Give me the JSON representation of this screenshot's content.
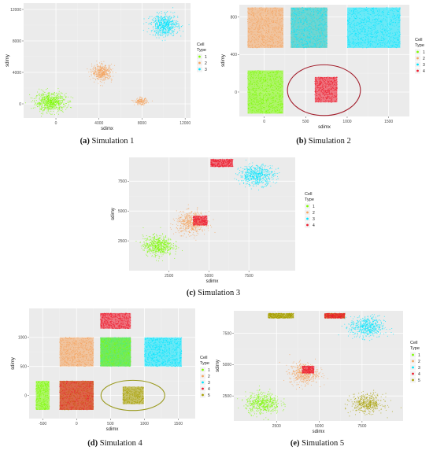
{
  "colors": {
    "1": "#7cfc00",
    "2": "#f4a460",
    "3": "#00e5ff",
    "4": "#ee1c2e",
    "5": "#a8a000",
    "ellipse": "#a31f2d",
    "ellipse_olive": "#9a9a1e"
  },
  "legend_title_line1": "Cell",
  "legend_title_line2": "Type",
  "chart_data": [
    {
      "type": "scatter",
      "caption_label": "(a)",
      "caption_text": "Simulation 1",
      "xlabel": "sdimx",
      "ylabel": "sdimy",
      "xlim": [
        -3000,
        12500
      ],
      "ylim": [
        -1800,
        12800
      ],
      "xticks": [
        "0",
        "4000",
        "8000",
        "12000"
      ],
      "xtick_values": [
        0,
        4000,
        8000,
        12000
      ],
      "yticks": [
        "0",
        "4000",
        "8000",
        "12000"
      ],
      "ytick_values": [
        0,
        4000,
        8000,
        12000
      ],
      "legend": [
        "1",
        "2",
        "3"
      ],
      "clusters": [
        {
          "type": "1",
          "shape": "blob",
          "cx": -500,
          "cy": 200,
          "rx": 1700,
          "ry": 1400,
          "n": 700
        },
        {
          "type": "2",
          "shape": "blob",
          "cx": 4300,
          "cy": 4000,
          "rx": 1100,
          "ry": 1200,
          "n": 450
        },
        {
          "type": "2",
          "shape": "blob",
          "cx": 7900,
          "cy": 300,
          "rx": 700,
          "ry": 500,
          "n": 160
        },
        {
          "type": "3",
          "shape": "blob",
          "cx": 10100,
          "cy": 10000,
          "rx": 1500,
          "ry": 1600,
          "n": 650
        }
      ],
      "ellipses": []
    },
    {
      "type": "scatter",
      "caption_label": "(b)",
      "caption_text": "Simulation 2",
      "xlabel": "sdimx",
      "ylabel": "sdimy",
      "xlim": [
        -300,
        1750
      ],
      "ylim": [
        -260,
        930
      ],
      "xticks": [
        "0",
        "500",
        "1000",
        "1500"
      ],
      "xtick_values": [
        0,
        500,
        1000,
        1500
      ],
      "yticks": [
        "0",
        "400",
        "800"
      ],
      "ytick_values": [
        0,
        400,
        800
      ],
      "legend": [
        "1",
        "2",
        "3",
        "4"
      ],
      "clusters": [
        {
          "type": "2",
          "shape": "rect",
          "x0": -200,
          "x1": 230,
          "y0": 470,
          "y1": 900,
          "n": 700
        },
        {
          "type": "2",
          "shape": "rect",
          "x0": 320,
          "x1": 760,
          "y0": 470,
          "y1": 900,
          "n": 500
        },
        {
          "type": "3",
          "shape": "rect",
          "x0": 320,
          "x1": 760,
          "y0": 470,
          "y1": 900,
          "n": 500
        },
        {
          "type": "3",
          "shape": "rect",
          "x0": 1000,
          "x1": 1640,
          "y0": 470,
          "y1": 900,
          "n": 800
        },
        {
          "type": "1",
          "shape": "rect",
          "x0": -200,
          "x1": 230,
          "y0": -230,
          "y1": 230,
          "n": 750
        },
        {
          "type": "4",
          "shape": "rect",
          "x0": 610,
          "x1": 880,
          "y0": -110,
          "y1": 160,
          "n": 450
        }
      ],
      "ellipses": [
        {
          "cx": 720,
          "cy": 20,
          "rx": 440,
          "ry": 270,
          "color_key": "ellipse"
        }
      ]
    },
    {
      "type": "scatter",
      "caption_label": "(c)",
      "caption_text": "Simulation 3",
      "xlabel": "sdimx",
      "ylabel": "sdimy",
      "xlim": [
        0,
        10400
      ],
      "ylim": [
        0,
        9500
      ],
      "xticks": [
        "2500",
        "5000",
        "7500"
      ],
      "xtick_values": [
        2500,
        5000,
        7500
      ],
      "yticks": [
        "2500",
        "5000",
        "7500"
      ],
      "ytick_values": [
        2500,
        5000,
        7500
      ],
      "legend": [
        "1",
        "2",
        "3",
        "4"
      ],
      "clusters": [
        {
          "type": "1",
          "shape": "blob",
          "cx": 1800,
          "cy": 2100,
          "rx": 1100,
          "ry": 1000,
          "n": 600
        },
        {
          "type": "2",
          "shape": "blob",
          "cx": 3900,
          "cy": 4000,
          "rx": 1100,
          "ry": 1100,
          "n": 550
        },
        {
          "type": "4",
          "shape": "rect",
          "x0": 4000,
          "x1": 4900,
          "y0": 3800,
          "y1": 4600,
          "n": 220
        },
        {
          "type": "4",
          "shape": "rect",
          "x0": 5100,
          "x1": 6500,
          "y0": 8700,
          "y1": 9350,
          "n": 300
        },
        {
          "type": "3",
          "shape": "blob",
          "cx": 8000,
          "cy": 8000,
          "rx": 1300,
          "ry": 1000,
          "n": 600
        }
      ],
      "ellipses": []
    },
    {
      "type": "scatter",
      "caption_label": "(d)",
      "caption_text": "Simulation 4",
      "xlabel": "sdimx",
      "ylabel": "sdimy",
      "xlim": [
        -700,
        1750
      ],
      "ylim": [
        -400,
        1500
      ],
      "xticks": [
        "-500",
        "0",
        "500",
        "1000",
        "1500"
      ],
      "xtick_values": [
        -500,
        0,
        500,
        1000,
        1500
      ],
      "yticks": [
        "0",
        "500",
        "1000"
      ],
      "ytick_values": [
        0,
        500,
        1000
      ],
      "legend": [
        "1",
        "2",
        "3",
        "4",
        "5"
      ],
      "clusters": [
        {
          "type": "4",
          "shape": "rect",
          "x0": 350,
          "x1": 800,
          "y0": 1150,
          "y1": 1420,
          "n": 450
        },
        {
          "type": "2",
          "shape": "rect",
          "x0": -250,
          "x1": 250,
          "y0": 500,
          "y1": 1000,
          "n": 600
        },
        {
          "type": "2",
          "shape": "rect",
          "x0": 350,
          "x1": 800,
          "y0": 500,
          "y1": 1000,
          "n": 400
        },
        {
          "type": "3",
          "shape": "rect",
          "x0": 350,
          "x1": 800,
          "y0": 500,
          "y1": 1000,
          "n": 300
        },
        {
          "type": "1",
          "shape": "rect",
          "x0": 350,
          "x1": 800,
          "y0": 500,
          "y1": 1000,
          "n": 250
        },
        {
          "type": "3",
          "shape": "rect",
          "x0": 1000,
          "x1": 1550,
          "y0": 500,
          "y1": 1000,
          "n": 650
        },
        {
          "type": "1",
          "shape": "rect",
          "x0": -600,
          "x1": -400,
          "y0": -250,
          "y1": 250,
          "n": 300
        },
        {
          "type": "5",
          "shape": "rect",
          "x0": -250,
          "x1": 250,
          "y0": -250,
          "y1": 250,
          "n": 500
        },
        {
          "type": "4",
          "shape": "rect",
          "x0": -250,
          "x1": 250,
          "y0": -250,
          "y1": 250,
          "n": 200
        },
        {
          "type": "5",
          "shape": "rect",
          "x0": 680,
          "x1": 990,
          "y0": -150,
          "y1": 150,
          "n": 300
        }
      ],
      "ellipses": [
        {
          "cx": 830,
          "cy": 0,
          "rx": 470,
          "ry": 260,
          "color_key": "ellipse_olive"
        }
      ]
    },
    {
      "type": "scatter",
      "caption_label": "(e)",
      "caption_text": "Simulation 5",
      "xlabel": "sdimx",
      "ylabel": "sdimy",
      "xlim": [
        0,
        9900
      ],
      "ylim": [
        500,
        9300
      ],
      "xticks": [
        "2500",
        "5000",
        "7500"
      ],
      "xtick_values": [
        2500,
        5000,
        7500
      ],
      "yticks": [
        "2500",
        "5000",
        "7500"
      ],
      "ytick_values": [
        2500,
        5000,
        7500
      ],
      "legend": [
        "1",
        "2",
        "3",
        "4",
        "5"
      ],
      "clusters": [
        {
          "type": "5",
          "shape": "rect",
          "x0": 2000,
          "x1": 3500,
          "y0": 8700,
          "y1": 9100,
          "n": 400
        },
        {
          "type": "5",
          "shape": "rect",
          "x0": 5300,
          "x1": 6500,
          "y0": 8700,
          "y1": 9100,
          "n": 200
        },
        {
          "type": "4",
          "shape": "rect",
          "x0": 5300,
          "x1": 6500,
          "y0": 8700,
          "y1": 9100,
          "n": 200
        },
        {
          "type": "3",
          "shape": "blob",
          "cx": 7800,
          "cy": 8000,
          "rx": 1200,
          "ry": 1000,
          "n": 550
        },
        {
          "type": "2",
          "shape": "blob",
          "cx": 4100,
          "cy": 4300,
          "rx": 1000,
          "ry": 1000,
          "n": 500
        },
        {
          "type": "4",
          "shape": "rect",
          "x0": 4000,
          "x1": 4700,
          "y0": 4300,
          "y1": 4900,
          "n": 180
        },
        {
          "type": "1",
          "shape": "blob",
          "cx": 1700,
          "cy": 1900,
          "rx": 1200,
          "ry": 1000,
          "n": 550
        },
        {
          "type": "5",
          "shape": "blob",
          "cx": 7800,
          "cy": 1900,
          "rx": 1100,
          "ry": 900,
          "n": 450
        }
      ],
      "ellipses": []
    }
  ]
}
